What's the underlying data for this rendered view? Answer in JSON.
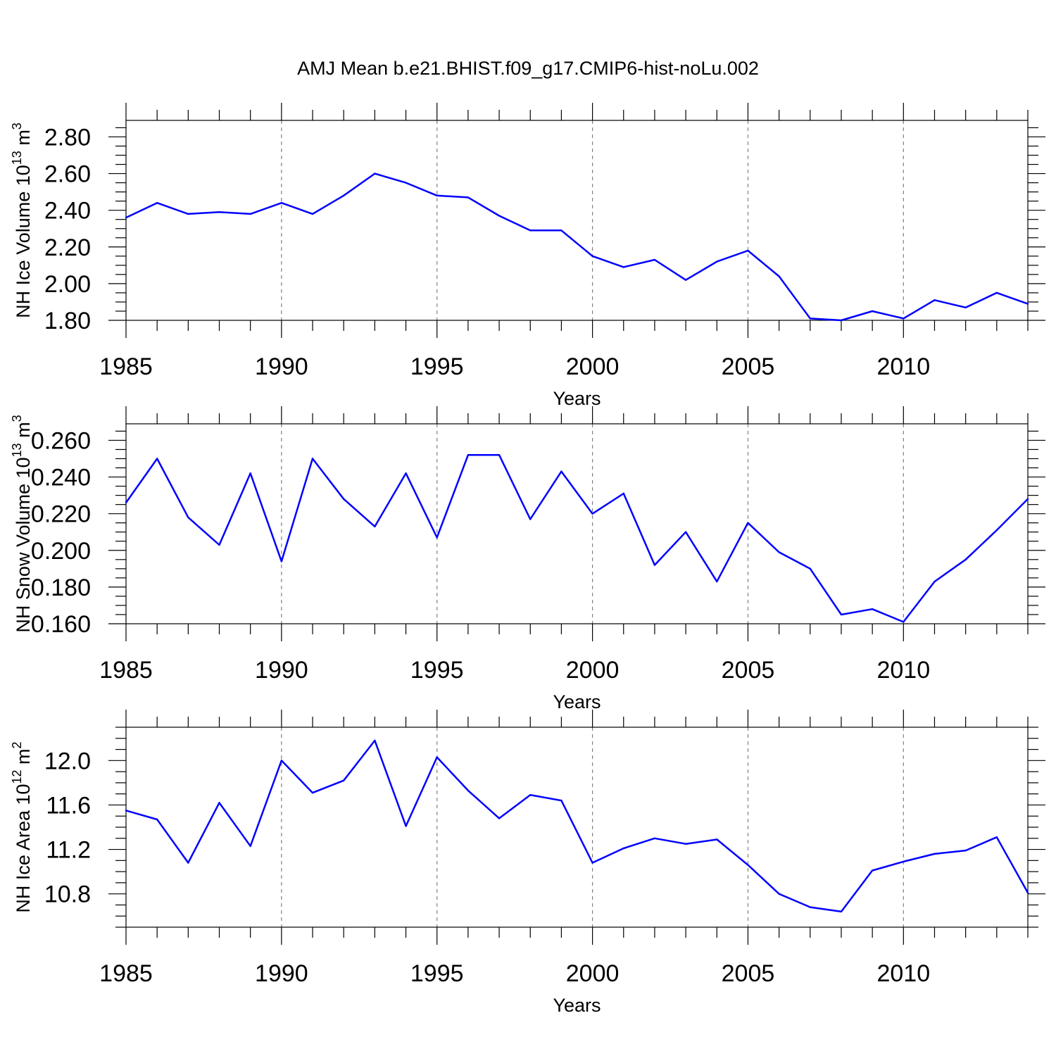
{
  "title": "AMJ Mean b.e21.BHIST.f09_g17.CMIP6-hist-noLu.002",
  "chart_data": [
    {
      "type": "line",
      "xlabel": "Years",
      "ylabel": "NH Ice Volume 10",
      "ylabel_exp": "13",
      "ylabel_unit": "m",
      "ylabel_unit_exp": "3",
      "x": [
        1985,
        1986,
        1987,
        1988,
        1989,
        1990,
        1991,
        1992,
        1993,
        1994,
        1995,
        1996,
        1997,
        1998,
        1999,
        2000,
        2001,
        2002,
        2003,
        2004,
        2005,
        2006,
        2007,
        2008,
        2009,
        2010,
        2011,
        2012,
        2013,
        2014
      ],
      "y": [
        2.36,
        2.44,
        2.38,
        2.39,
        2.38,
        2.44,
        2.38,
        2.48,
        2.6,
        2.55,
        2.48,
        2.47,
        2.37,
        2.29,
        2.29,
        2.15,
        2.09,
        2.13,
        2.02,
        2.12,
        2.18,
        2.04,
        1.81,
        1.8,
        1.85,
        1.81,
        1.91,
        1.87,
        1.95,
        1.89
      ],
      "xlim": [
        1985,
        2014
      ],
      "ylim": [
        1.8,
        2.89
      ],
      "yticks": [
        1.8,
        2.0,
        2.2,
        2.4,
        2.6,
        2.8
      ],
      "ytick_labels": [
        "1.80",
        "2.00",
        "2.20",
        "2.40",
        "2.60",
        "2.80"
      ],
      "ytick_minor_step": 0.05,
      "xticks": [
        1985,
        1990,
        1995,
        2000,
        2005,
        2010
      ],
      "xtick_labels": [
        "1985",
        "1990",
        "1995",
        "2000",
        "2005",
        "2010"
      ],
      "line_color": "#0000ff",
      "grid": "vertical-dashed"
    },
    {
      "type": "line",
      "xlabel": "Years",
      "ylabel": "NH Snow Volume 10",
      "ylabel_exp": "13",
      "ylabel_unit": "m",
      "ylabel_unit_exp": "3",
      "x": [
        1985,
        1986,
        1987,
        1988,
        1989,
        1990,
        1991,
        1992,
        1993,
        1994,
        1995,
        1996,
        1997,
        1998,
        1999,
        2000,
        2001,
        2002,
        2003,
        2004,
        2005,
        2006,
        2007,
        2008,
        2009,
        2010,
        2011,
        2012,
        2013,
        2014
      ],
      "y": [
        0.226,
        0.25,
        0.218,
        0.203,
        0.242,
        0.194,
        0.25,
        0.228,
        0.213,
        0.242,
        0.207,
        0.252,
        0.252,
        0.217,
        0.243,
        0.22,
        0.231,
        0.192,
        0.21,
        0.183,
        0.215,
        0.199,
        0.19,
        0.165,
        0.168,
        0.161,
        0.183,
        0.195,
        0.211,
        0.228
      ],
      "xlim": [
        1985,
        2014
      ],
      "ylim": [
        0.16,
        0.269
      ],
      "yticks": [
        0.16,
        0.18,
        0.2,
        0.22,
        0.24,
        0.26
      ],
      "ytick_labels": [
        "0.160",
        "0.180",
        "0.200",
        "0.220",
        "0.240",
        "0.260"
      ],
      "ytick_minor_step": 0.005,
      "xticks": [
        1985,
        1990,
        1995,
        2000,
        2005,
        2010
      ],
      "xtick_labels": [
        "1985",
        "1990",
        "1995",
        "2000",
        "2005",
        "2010"
      ],
      "line_color": "#0000ff",
      "grid": "vertical-dashed"
    },
    {
      "type": "line",
      "xlabel": "Years",
      "ylabel": "NH Ice Area 10",
      "ylabel_exp": "12",
      "ylabel_unit": "m",
      "ylabel_unit_exp": "2",
      "x": [
        1985,
        1986,
        1987,
        1988,
        1989,
        1990,
        1991,
        1992,
        1993,
        1994,
        1995,
        1996,
        1997,
        1998,
        1999,
        2000,
        2001,
        2002,
        2003,
        2004,
        2005,
        2006,
        2007,
        2008,
        2009,
        2010,
        2011,
        2012,
        2013,
        2014
      ],
      "y": [
        11.55,
        11.47,
        11.08,
        11.62,
        11.23,
        12.0,
        11.71,
        11.82,
        12.18,
        11.41,
        12.03,
        11.73,
        11.48,
        11.69,
        11.64,
        11.08,
        11.21,
        11.3,
        11.25,
        11.29,
        11.06,
        10.8,
        10.68,
        10.64,
        11.01,
        11.09,
        11.16,
        11.19,
        11.31,
        10.81
      ],
      "xlim": [
        1985,
        2014
      ],
      "ylim": [
        10.5,
        12.3
      ],
      "yticks": [
        10.8,
        11.2,
        11.6,
        12.0
      ],
      "ytick_labels": [
        "10.8",
        "11.2",
        "11.6",
        "12.0"
      ],
      "ytick_minor_step": 0.1,
      "xticks": [
        1985,
        1990,
        1995,
        2000,
        2005,
        2010
      ],
      "xtick_labels": [
        "1985",
        "1990",
        "1995",
        "2000",
        "2005",
        "2010"
      ],
      "line_color": "#0000ff",
      "grid": "vertical-dashed"
    }
  ]
}
